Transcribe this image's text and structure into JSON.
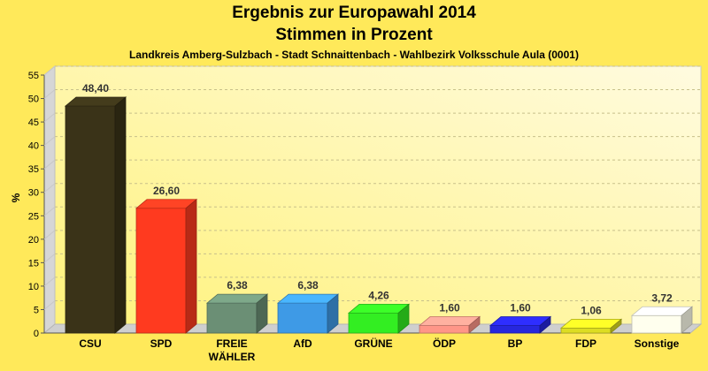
{
  "chart_data": {
    "type": "bar",
    "title": "Ergebnis zur Europawahl 2014",
    "subtitle": "Stimmen in Prozent",
    "caption": "Landkreis Amberg-Sulzbach - Stadt Schnaittenbach - Wahlbezirk Volksschule Aula (0001)",
    "ylabel": "%",
    "ylim": [
      0,
      55
    ],
    "yticks": [
      "0",
      "5",
      "10",
      "15",
      "20",
      "25",
      "30",
      "35",
      "40",
      "45",
      "50",
      "55"
    ],
    "categories": [
      "CSU",
      "SPD",
      "FREIE WÄHLER",
      "AfD",
      "GRÜNE",
      "ÖDP",
      "BP",
      "FDP",
      "Sonstige"
    ],
    "category_lines": [
      [
        "CSU"
      ],
      [
        "SPD"
      ],
      [
        "FREIE",
        "WÄHLER"
      ],
      [
        "AfD"
      ],
      [
        "GRÜNE"
      ],
      [
        "ÖDP"
      ],
      [
        "BP"
      ],
      [
        "FDP"
      ],
      [
        "Sonstige"
      ]
    ],
    "values": [
      48.4,
      26.6,
      6.38,
      6.38,
      4.26,
      1.6,
      1.6,
      1.06,
      3.72
    ],
    "value_labels": [
      "48,40",
      "26,60",
      "6,38",
      "6,38",
      "4,26",
      "1,60",
      "1,60",
      "1,06",
      "3,72"
    ],
    "colors": [
      "#3a3318",
      "#ff3a1f",
      "#6b8f75",
      "#3e9ae6",
      "#33ee22",
      "#ff9688",
      "#2727dd",
      "#dddd22",
      "#ffffee"
    ],
    "grid": true,
    "legend": "none"
  }
}
